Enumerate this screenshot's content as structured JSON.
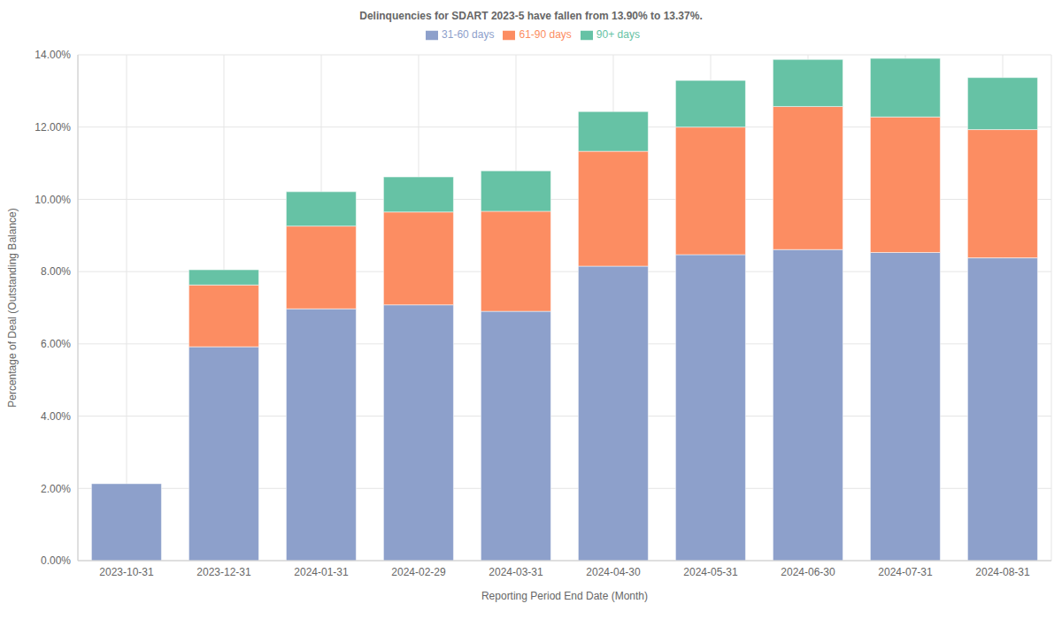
{
  "chart_data": {
    "type": "bar",
    "title": "Delinquencies for SDART 2023-5 have fallen from 13.90% to 13.37%.",
    "x_label": "Reporting Period End Date (Month)",
    "y_label": "Percentage of Deal (Outstanding Balance)",
    "categories": [
      "2023-10-31",
      "2023-12-31",
      "2024-01-31",
      "2024-02-29",
      "2024-03-31",
      "2024-04-30",
      "2024-05-31",
      "2024-06-30",
      "2024-07-31",
      "2024-08-31"
    ],
    "series": [
      {
        "name": "31-60 days",
        "color": "#8da0cb",
        "values": [
          2.13,
          5.92,
          6.97,
          7.08,
          6.9,
          8.15,
          8.47,
          8.61,
          8.53,
          8.38
        ]
      },
      {
        "name": "61-90 days",
        "color": "#fc8d62",
        "values": [
          0,
          1.71,
          2.29,
          2.57,
          2.77,
          3.18,
          3.53,
          3.96,
          3.75,
          3.55
        ]
      },
      {
        "name": "90+ days",
        "color": "#66c2a5",
        "values": [
          0,
          0.42,
          0.95,
          0.97,
          1.12,
          1.1,
          1.29,
          1.3,
          1.62,
          1.44
        ]
      }
    ],
    "ylim": [
      0,
      14
    ],
    "yticks": [
      {
        "value": 0,
        "label": "0.00%"
      },
      {
        "value": 2,
        "label": "2.00%"
      },
      {
        "value": 4,
        "label": "4.00%"
      },
      {
        "value": 6,
        "label": "6.00%"
      },
      {
        "value": 8,
        "label": "8.00%"
      },
      {
        "value": 10,
        "label": "10.00%"
      },
      {
        "value": 12,
        "label": "12.00%"
      },
      {
        "value": 14,
        "label": "14.00%"
      }
    ],
    "stacked": true,
    "grid": true,
    "legend": "top"
  }
}
